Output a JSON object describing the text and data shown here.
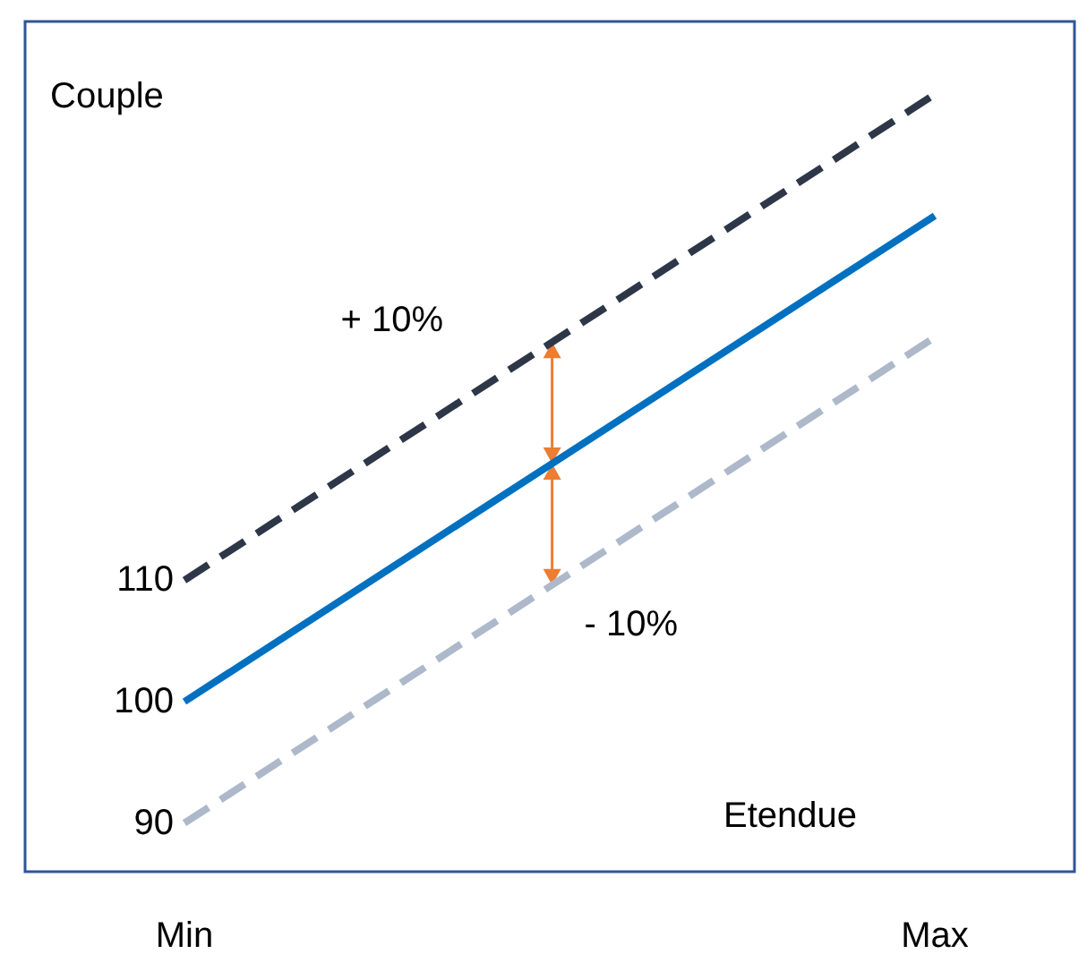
{
  "chart_data": {
    "type": "line",
    "ylabel": "Couple",
    "xlabel": "Etendue",
    "categories": [
      "Min",
      "Max"
    ],
    "series": [
      {
        "color": "#2e3748",
        "values": [
          110,
          150
        ],
        "line_style": "dashed"
      },
      {
        "color": "#0070c0",
        "values": [
          100,
          140
        ],
        "line_style": "solid"
      },
      {
        "color": "#adb9ca",
        "values": [
          90,
          130
        ],
        "line_style": "dashed"
      }
    ],
    "ylim": [
      86,
      156
    ],
    "yticks": [
      90,
      100,
      110
    ],
    "annotations": [
      "+ 10%",
      "- 10%"
    ],
    "grid": false,
    "marker": "none"
  }
}
